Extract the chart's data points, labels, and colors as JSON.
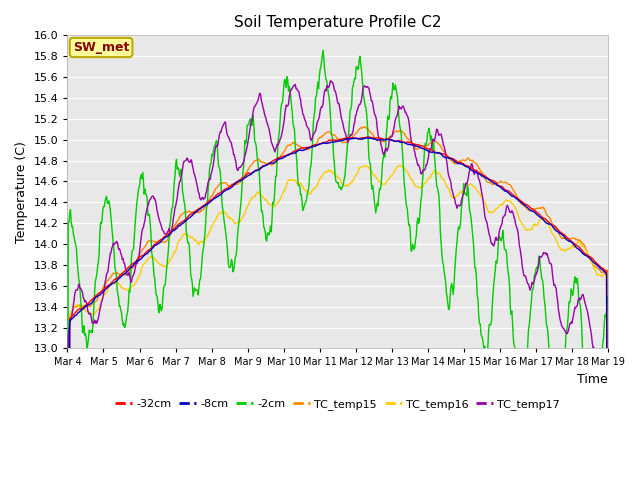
{
  "title": "Soil Temperature Profile C2",
  "xlabel": "Time",
  "ylabel": "Temperature (C)",
  "ylim": [
    13.0,
    16.0
  ],
  "yticks": [
    13.0,
    13.2,
    13.4,
    13.6,
    13.8,
    14.0,
    14.2,
    14.4,
    14.6,
    14.8,
    15.0,
    15.2,
    15.4,
    15.6,
    15.8,
    16.0
  ],
  "xtick_labels": [
    "Mar 4",
    "Mar 5",
    "Mar 6",
    "Mar 7",
    "Mar 8",
    "Mar 9",
    "Mar 10",
    "Mar 11",
    "Mar 12",
    "Mar 13",
    "Mar 14",
    "Mar 15",
    "Mar 16",
    "Mar 17",
    "Mar 18",
    "Mar 19"
  ],
  "legend_entries": [
    "-32cm",
    "-8cm",
    "-2cm",
    "TC_temp15",
    "TC_temp16",
    "TC_temp17"
  ],
  "line_colors": [
    "#ff0000",
    "#0000cc",
    "#00cc00",
    "#ff8800",
    "#ffcc00",
    "#9900aa"
  ],
  "annotation_text": "SW_met",
  "annotation_color": "#880000",
  "annotation_bg": "#ffff99",
  "annotation_border": "#bbaa00",
  "fig_bg_color": "#ffffff",
  "plot_bg_color": "#e8e8e8",
  "grid_color": "#ffffff",
  "title_fontsize": 11
}
